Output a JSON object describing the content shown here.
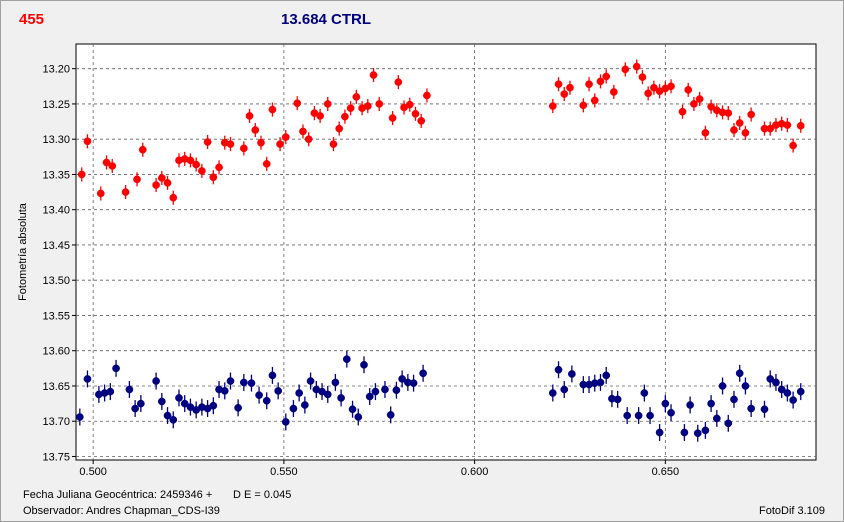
{
  "header": {
    "target_label": "455",
    "comparison_label": "13.684 CTRL"
  },
  "footer": {
    "date_label": "Fecha Juliana Geocéntrica: 2459346 +",
    "de_label": "D E = 0.045",
    "observer_label": "Observador: Andres Chapman_CDS-I39",
    "software_label": "FotoDif 3.109"
  },
  "colors": {
    "target": "#ff0000",
    "control": "#000080",
    "grid": "#606060",
    "plot_bg": "#ffffff"
  },
  "chart_data": {
    "type": "scatter",
    "ylabel": "Fotometría absoluta",
    "xlabel": "",
    "xlim": [
      0.4955,
      0.6895
    ],
    "ylim": [
      13.755,
      13.165
    ],
    "y_inverted": true,
    "grid": true,
    "x_ticks": [
      "0.500",
      "0.550",
      "0.600",
      "0.650"
    ],
    "y_ticks": [
      "13.20",
      "13.25",
      "13.30",
      "13.35",
      "13.40",
      "13.45",
      "13.50",
      "13.55",
      "13.60",
      "13.65",
      "13.70",
      "13.75"
    ],
    "series": [
      {
        "name": "455",
        "error": 0.01,
        "points": [
          [
            0.497,
            13.35
          ],
          [
            0.4985,
            13.303
          ],
          [
            0.502,
            13.377
          ],
          [
            0.5035,
            13.333
          ],
          [
            0.505,
            13.338
          ],
          [
            0.5085,
            13.375
          ],
          [
            0.5115,
            13.357
          ],
          [
            0.513,
            13.315
          ],
          [
            0.5165,
            13.365
          ],
          [
            0.518,
            13.355
          ],
          [
            0.5195,
            13.362
          ],
          [
            0.521,
            13.383
          ],
          [
            0.5225,
            13.33
          ],
          [
            0.524,
            13.328
          ],
          [
            0.5255,
            13.33
          ],
          [
            0.527,
            13.336
          ],
          [
            0.5285,
            13.345
          ],
          [
            0.53,
            13.304
          ],
          [
            0.5315,
            13.354
          ],
          [
            0.533,
            13.34
          ],
          [
            0.5345,
            13.305
          ],
          [
            0.536,
            13.307
          ],
          [
            0.5395,
            13.313
          ],
          [
            0.541,
            13.267
          ],
          [
            0.5425,
            13.287
          ],
          [
            0.544,
            13.305
          ],
          [
            0.5455,
            13.335
          ],
          [
            0.547,
            13.258
          ],
          [
            0.549,
            13.307
          ],
          [
            0.5505,
            13.297
          ],
          [
            0.5535,
            13.249
          ],
          [
            0.555,
            13.289
          ],
          [
            0.5565,
            13.3
          ],
          [
            0.558,
            13.263
          ],
          [
            0.5595,
            13.267
          ],
          [
            0.5615,
            13.25
          ],
          [
            0.563,
            13.307
          ],
          [
            0.5645,
            13.285
          ],
          [
            0.566,
            13.268
          ],
          [
            0.5675,
            13.256
          ],
          [
            0.569,
            13.24
          ],
          [
            0.5705,
            13.256
          ],
          [
            0.572,
            13.253
          ],
          [
            0.5735,
            13.209
          ],
          [
            0.575,
            13.25
          ],
          [
            0.5785,
            13.27
          ],
          [
            0.58,
            13.219
          ],
          [
            0.5815,
            13.255
          ],
          [
            0.583,
            13.251
          ],
          [
            0.5845,
            13.264
          ],
          [
            0.586,
            13.274
          ],
          [
            0.5875,
            13.238
          ],
          [
            0.6205,
            13.253
          ],
          [
            0.622,
            13.222
          ],
          [
            0.6235,
            13.236
          ],
          [
            0.625,
            13.227
          ],
          [
            0.6285,
            13.252
          ],
          [
            0.63,
            13.222
          ],
          [
            0.6315,
            13.245
          ],
          [
            0.633,
            13.218
          ],
          [
            0.6345,
            13.211
          ],
          [
            0.6365,
            13.233
          ],
          [
            0.6395,
            13.201
          ],
          [
            0.6425,
            13.197
          ],
          [
            0.644,
            13.212
          ],
          [
            0.6455,
            13.235
          ],
          [
            0.647,
            13.227
          ],
          [
            0.6485,
            13.232
          ],
          [
            0.65,
            13.228
          ],
          [
            0.6515,
            13.225
          ],
          [
            0.6545,
            13.261
          ],
          [
            0.656,
            13.23
          ],
          [
            0.6575,
            13.25
          ],
          [
            0.659,
            13.243
          ],
          [
            0.6605,
            13.291
          ],
          [
            0.662,
            13.254
          ],
          [
            0.6635,
            13.259
          ],
          [
            0.665,
            13.262
          ],
          [
            0.6665,
            13.263
          ],
          [
            0.668,
            13.287
          ],
          [
            0.6695,
            13.277
          ],
          [
            0.671,
            13.291
          ],
          [
            0.6725,
            13.265
          ],
          [
            0.676,
            13.285
          ],
          [
            0.6775,
            13.285
          ],
          [
            0.679,
            13.28
          ],
          [
            0.6805,
            13.278
          ],
          [
            0.682,
            13.28
          ],
          [
            0.6835,
            13.309
          ],
          [
            0.6855,
            13.281
          ]
        ]
      },
      {
        "name": "13.684 CTRL",
        "error": 0.012,
        "points": [
          [
            0.4965,
            13.694
          ],
          [
            0.4985,
            13.64
          ],
          [
            0.5015,
            13.662
          ],
          [
            0.503,
            13.66
          ],
          [
            0.5045,
            13.658
          ],
          [
            0.506,
            13.625
          ],
          [
            0.5095,
            13.655
          ],
          [
            0.511,
            13.682
          ],
          [
            0.5125,
            13.675
          ],
          [
            0.5165,
            13.643
          ],
          [
            0.518,
            13.672
          ],
          [
            0.5195,
            13.692
          ],
          [
            0.521,
            13.698
          ],
          [
            0.5225,
            13.667
          ],
          [
            0.524,
            13.675
          ],
          [
            0.5255,
            13.68
          ],
          [
            0.527,
            13.684
          ],
          [
            0.5285,
            13.68
          ],
          [
            0.53,
            13.682
          ],
          [
            0.5315,
            13.678
          ],
          [
            0.533,
            13.655
          ],
          [
            0.5345,
            13.657
          ],
          [
            0.536,
            13.643
          ],
          [
            0.538,
            13.681
          ],
          [
            0.5395,
            13.645
          ],
          [
            0.5415,
            13.646
          ],
          [
            0.5435,
            13.663
          ],
          [
            0.5455,
            13.671
          ],
          [
            0.547,
            13.635
          ],
          [
            0.5485,
            13.657
          ],
          [
            0.5505,
            13.701
          ],
          [
            0.5525,
            13.682
          ],
          [
            0.554,
            13.66
          ],
          [
            0.5555,
            13.677
          ],
          [
            0.557,
            13.643
          ],
          [
            0.5585,
            13.655
          ],
          [
            0.56,
            13.658
          ],
          [
            0.5615,
            13.662
          ],
          [
            0.5635,
            13.645
          ],
          [
            0.565,
            13.667
          ],
          [
            0.5665,
            13.612
          ],
          [
            0.568,
            13.683
          ],
          [
            0.5695,
            13.694
          ],
          [
            0.571,
            13.62
          ],
          [
            0.5725,
            13.665
          ],
          [
            0.574,
            13.658
          ],
          [
            0.5765,
            13.655
          ],
          [
            0.578,
            13.691
          ],
          [
            0.5795,
            13.656
          ],
          [
            0.581,
            13.64
          ],
          [
            0.5825,
            13.645
          ],
          [
            0.584,
            13.646
          ],
          [
            0.5865,
            13.632
          ],
          [
            0.6205,
            13.66
          ],
          [
            0.622,
            13.627
          ],
          [
            0.6235,
            13.655
          ],
          [
            0.6255,
            13.633
          ],
          [
            0.6285,
            13.648
          ],
          [
            0.63,
            13.648
          ],
          [
            0.6315,
            13.646
          ],
          [
            0.633,
            13.645
          ],
          [
            0.6345,
            13.635
          ],
          [
            0.636,
            13.668
          ],
          [
            0.6375,
            13.669
          ],
          [
            0.64,
            13.692
          ],
          [
            0.643,
            13.692
          ],
          [
            0.6445,
            13.66
          ],
          [
            0.646,
            13.692
          ],
          [
            0.6485,
            13.716
          ],
          [
            0.65,
            13.675
          ],
          [
            0.6515,
            13.688
          ],
          [
            0.655,
            13.716
          ],
          [
            0.6565,
            13.677
          ],
          [
            0.6585,
            13.717
          ],
          [
            0.6605,
            13.713
          ],
          [
            0.662,
            13.675
          ],
          [
            0.6635,
            13.696
          ],
          [
            0.665,
            13.65
          ],
          [
            0.6665,
            13.703
          ],
          [
            0.668,
            13.669
          ],
          [
            0.6695,
            13.632
          ],
          [
            0.671,
            13.65
          ],
          [
            0.6725,
            13.682
          ],
          [
            0.676,
            13.683
          ],
          [
            0.6775,
            13.64
          ],
          [
            0.679,
            13.645
          ],
          [
            0.6805,
            13.655
          ],
          [
            0.682,
            13.66
          ],
          [
            0.6835,
            13.67
          ],
          [
            0.6855,
            13.658
          ]
        ]
      }
    ]
  }
}
